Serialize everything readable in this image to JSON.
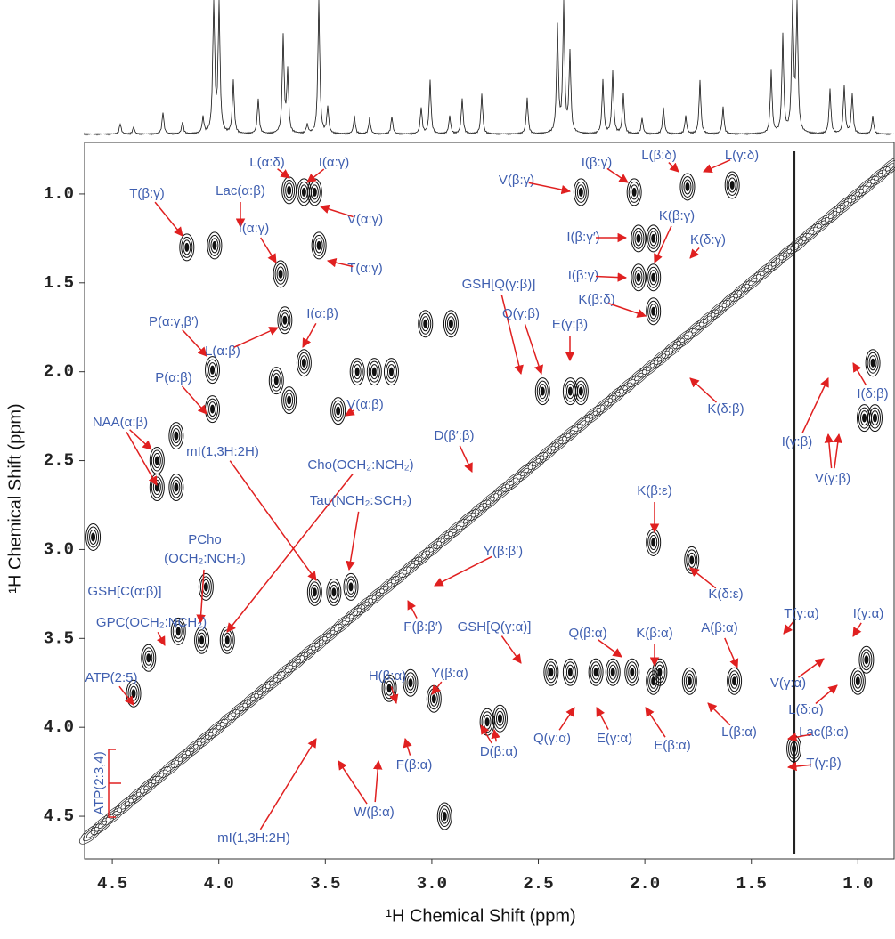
{
  "chart_data": {
    "type": "contour",
    "xlabel": "¹H Chemical Shift (ppm)",
    "ylabel": "¹H Chemical Shift (ppm)",
    "xlim": [
      4.63,
      0.83
    ],
    "ylim": [
      0.71,
      4.74
    ],
    "xticks": [
      {
        "value": 4.5,
        "label": "4.5"
      },
      {
        "value": 4,
        "label": "4.0"
      },
      {
        "value": 3.5,
        "label": "3.5"
      },
      {
        "value": 3,
        "label": "3.0"
      },
      {
        "value": 2.5,
        "label": "2.5"
      },
      {
        "value": 2,
        "label": "2.0"
      },
      {
        "value": 1.5,
        "label": "1.5"
      },
      {
        "value": 1,
        "label": "1.0"
      }
    ],
    "yticks": [
      {
        "value": 1,
        "label": "1.0"
      },
      {
        "value": 1.5,
        "label": "1.5"
      },
      {
        "value": 2,
        "label": "2.0"
      },
      {
        "value": 2.5,
        "label": "2.5"
      },
      {
        "value": 3,
        "label": "3.0"
      },
      {
        "value": 3.5,
        "label": "3.5"
      },
      {
        "value": 4,
        "label": "4.0"
      },
      {
        "value": 4.5,
        "label": "4.5"
      }
    ],
    "peaks": {
      "x": [
        3.67,
        3.6,
        3.55,
        4.15,
        4.02,
        3.71,
        3.53,
        3.69,
        3.6,
        4.03,
        4.03,
        4.2,
        4.29,
        4.29,
        4.2,
        3.73,
        3.67,
        3.35,
        3.27,
        3.19,
        3.44,
        3.03,
        2.91,
        2.3,
        2.05,
        1.8,
        1.59,
        2.03,
        1.96,
        2.03,
        1.96,
        1.96,
        2.48,
        2.35,
        2.3,
        0.93,
        0.97,
        0.92,
        4.59,
        4.06,
        4.19,
        4.08,
        3.96,
        4.33,
        4.4,
        3.38,
        3.55,
        3.46,
        2.23,
        2.15,
        2.06,
        1.93,
        2.44,
        2.35,
        1.78,
        1.96,
        1.96,
        1.79,
        1.58,
        1.3,
        1.0,
        0.96,
        3.1,
        3.2,
        2.99,
        2.74,
        2.68,
        2.94
      ],
      "y": [
        0.98,
        0.99,
        0.99,
        1.3,
        1.29,
        1.45,
        1.29,
        1.71,
        1.95,
        1.99,
        2.21,
        2.36,
        2.5,
        2.65,
        2.65,
        2.05,
        2.16,
        2.0,
        2.0,
        2.0,
        2.22,
        1.73,
        1.73,
        0.99,
        0.99,
        0.96,
        0.95,
        1.25,
        1.25,
        1.47,
        1.47,
        1.66,
        2.11,
        2.11,
        2.11,
        1.95,
        2.26,
        2.26,
        2.93,
        3.21,
        3.46,
        3.51,
        3.51,
        3.61,
        3.81,
        3.21,
        3.24,
        3.24,
        3.69,
        3.69,
        3.69,
        3.69,
        3.69,
        3.69,
        3.06,
        2.96,
        3.74,
        3.74,
        3.74,
        4.12,
        3.74,
        3.62,
        3.75,
        3.78,
        3.84,
        3.97,
        3.95,
        4.5
      ]
    },
    "annotations": [
      "L(α:δ)",
      "I(α:γ)",
      "Lac(α:β)",
      "T(β:γ)",
      "I(α:γ)",
      "V(α:γ)",
      "T(α:γ)",
      "P(α:γ,β′)",
      "L(α:β)",
      "I(α:β)",
      "P(α:β)",
      "V(α:β)",
      "NAA(α:β)",
      "mI(1,3H:2H)",
      "Cho(OCH₂:NCH₂)",
      "Tau(NCH₂:SCH₂)",
      "D(β′:β)",
      "Y(β:β′)",
      "PCho",
      "(OCH₂:NCH₂)",
      "GSH[C(α:β)]",
      "GPC(OCH₂:NCH₂)",
      "ATP(2:5)",
      "ATP(2:3,4)",
      "GSH[Q(γ:β)]",
      "Q(γ:β)",
      "E(γ:β)",
      "I(β:γ)",
      "L(β:δ)",
      "L(γ:δ)",
      "V(β:γ)",
      "K(β:γ)",
      "K(δ:γ)",
      "I(β:γ′)",
      "I(β:γ)",
      "K(β:δ)",
      "K(δ:β)",
      "I(γ:β)",
      "I(δ:β)",
      "V(γ:β)",
      "K(β:ε)",
      "K(δ:ε)",
      "GSH[Q(γ:α)]",
      "Q(β:α)",
      "K(β:α)",
      "A(β:α)",
      "T(γ:α)",
      "I(γ:α)",
      "V(γ:α)",
      "L(δ:α)",
      "Lac(β:α)",
      "T(γ:β)",
      "F(β:β′)",
      "H(β:α)",
      "Y(β:α)",
      "F(β:α)",
      "D(β:α)",
      "Q(γ:α)",
      "E(γ:α)",
      "E(β:α)",
      "L(β:α)",
      "W(β:α)",
      "mI(1,3H:2H)"
    ]
  }
}
